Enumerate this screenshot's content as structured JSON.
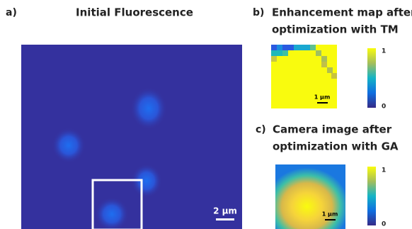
{
  "panels": [
    {
      "label": "a)",
      "title": "Initial Fluorescence",
      "scale_bar": "2 µm"
    },
    {
      "label": "b)",
      "title_lines": [
        "Enhancement map after",
        "optimization with TM"
      ],
      "scale_bar": "1 µm",
      "colorbar": {
        "max": 1,
        "min": 0
      }
    },
    {
      "label": "c)",
      "title_lines": [
        "Camera image after",
        "optimization with GA"
      ],
      "scale_bar": "1 µm",
      "colorbar": {
        "max": 1,
        "min": 0
      }
    }
  ]
}
